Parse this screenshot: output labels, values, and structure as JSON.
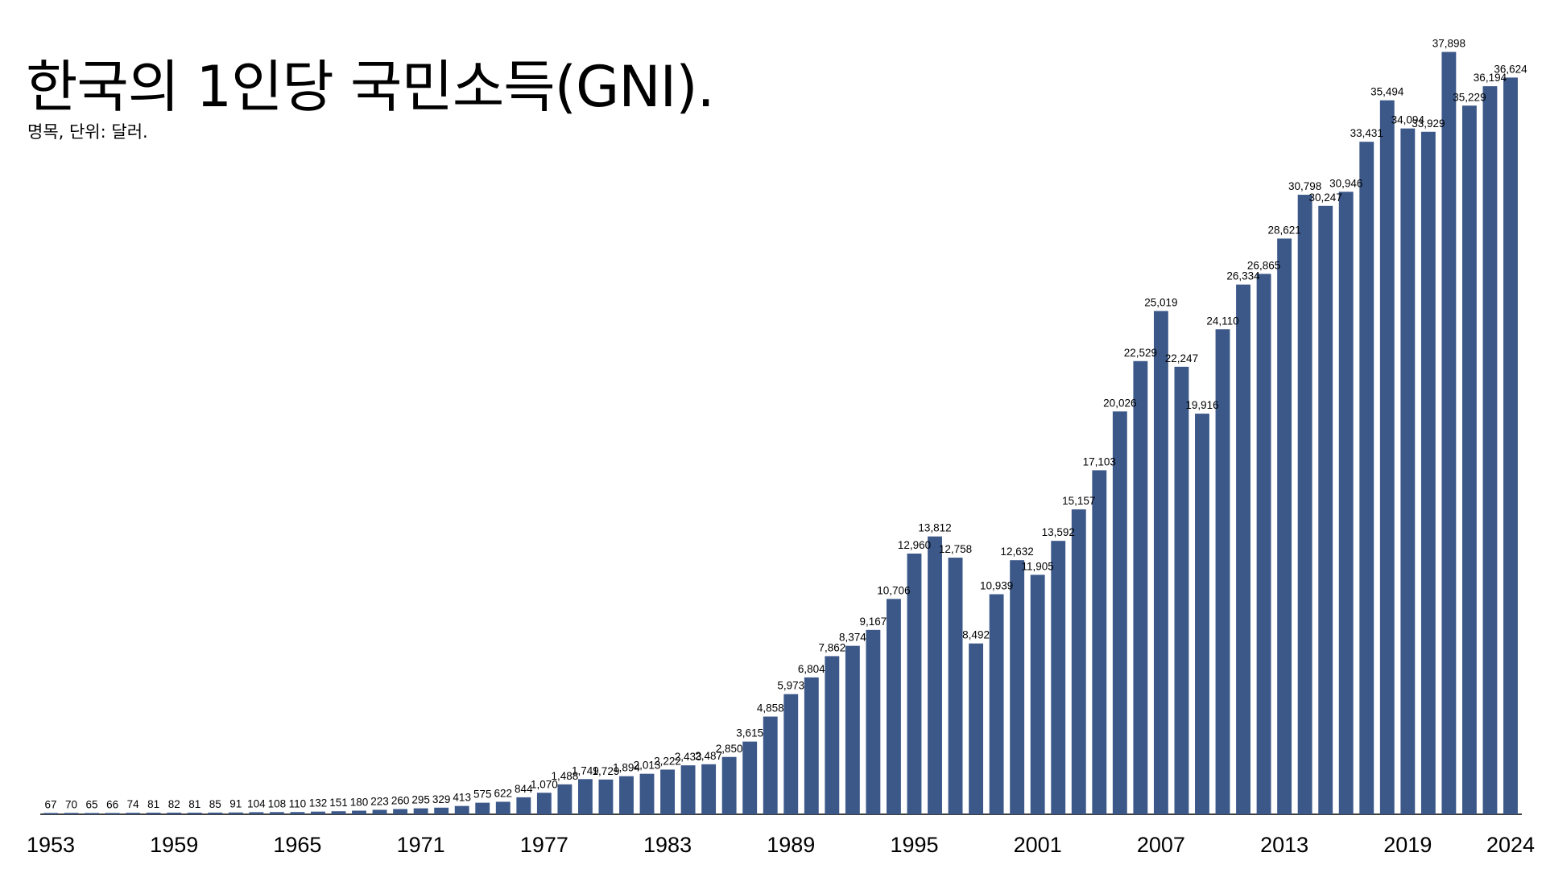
{
  "chart_data": {
    "type": "bar",
    "title": "한국의 1인당 국민소득(GNI).",
    "subtitle": "명목, 단위: 달러.",
    "xlabel": "",
    "ylabel": "",
    "ylim": [
      0,
      38000
    ],
    "grid": false,
    "bar_color": "#3b5889",
    "categories": [
      "1953",
      "1954",
      "1955",
      "1956",
      "1957",
      "1958",
      "1959",
      "1960",
      "1961",
      "1962",
      "1963",
      "1964",
      "1965",
      "1966",
      "1967",
      "1968",
      "1969",
      "1970",
      "1971",
      "1972",
      "1973",
      "1974",
      "1975",
      "1976",
      "1977",
      "1978",
      "1979",
      "1980",
      "1981",
      "1982",
      "1983",
      "1984",
      "1985",
      "1986",
      "1987",
      "1988",
      "1989",
      "1990",
      "1991",
      "1992",
      "1993",
      "1994",
      "1995",
      "1996",
      "1997",
      "1998",
      "1999",
      "2000",
      "2001",
      "2002",
      "2003",
      "2004",
      "2005",
      "2006",
      "2007",
      "2008",
      "2009",
      "2010",
      "2011",
      "2012",
      "2013",
      "2014",
      "2015",
      "2016",
      "2017",
      "2018",
      "2019",
      "2020",
      "2021",
      "2022",
      "2023",
      "2024"
    ],
    "values": [
      67,
      70,
      65,
      66,
      74,
      81,
      82,
      81,
      85,
      91,
      104,
      108,
      110,
      132,
      151,
      180,
      223,
      260,
      295,
      329,
      413,
      575,
      622,
      844,
      1070,
      1488,
      1749,
      1729,
      1894,
      2013,
      2222,
      2433,
      2487,
      2850,
      3615,
      4858,
      5973,
      6804,
      7862,
      8374,
      9167,
      10706,
      12960,
      13812,
      12758,
      8492,
      10939,
      12632,
      11905,
      13592,
      15157,
      17103,
      20026,
      22529,
      25019,
      22247,
      19916,
      24110,
      26334,
      26865,
      28621,
      30798,
      30247,
      30946,
      33431,
      35494,
      34094,
      33929,
      37898,
      35229,
      36194,
      36624
    ],
    "data_labels": [
      "67",
      "70",
      "65",
      "66",
      "74",
      "81",
      "82",
      "81",
      "85",
      "91",
      "104",
      "108",
      "110",
      "132",
      "151",
      "180",
      "223",
      "260",
      "295",
      "329",
      "413",
      "575",
      "622",
      "844",
      "1,070",
      "1,488",
      "1,749",
      "1,729",
      "1,894",
      "2,013",
      "2,222",
      "2,433",
      "2,487",
      "2,850",
      "3,615",
      "4,858",
      "5,973",
      "6,804",
      "7,862",
      "8,374",
      "9,167",
      "10,706",
      "12,960",
      "13,812",
      "12,758",
      "8,492",
      "10,939",
      "12,632",
      "11,905",
      "13,592",
      "15,157",
      "17,103",
      "20,026",
      "22,529",
      "25,019",
      "22,247",
      "19,916",
      "24,110",
      "26,334",
      "26,865",
      "28,621",
      "30,798",
      "30,247",
      "30,946",
      "33,431",
      "35,494",
      "34,094",
      "33,929",
      "37,898",
      "35,229",
      "36,194",
      "36,624"
    ],
    "tick_labels": [
      "1953",
      "1959",
      "1965",
      "1971",
      "1977",
      "1983",
      "1989",
      "1995",
      "2001",
      "2007",
      "2013",
      "2019",
      "2024"
    ]
  }
}
